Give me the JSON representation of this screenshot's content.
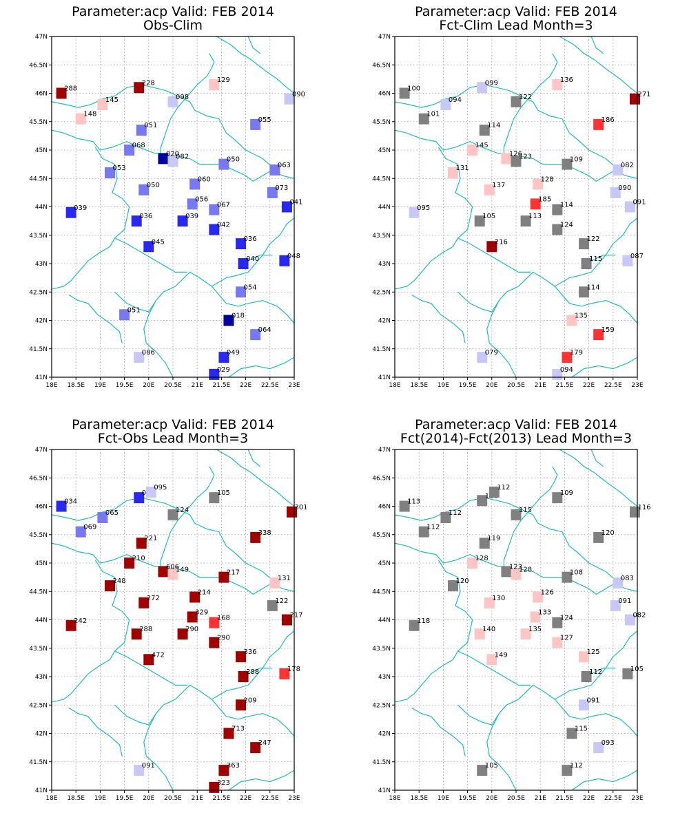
{
  "palette": {
    "dark_red": "#a00000",
    "red": "#ff3333",
    "light_red": "#ffc4c4",
    "gray": "#808080",
    "light_blue": "#c8c8f8",
    "mid_blue": "#7878f0",
    "blue": "#2828f0",
    "dark_blue": "#0000a0",
    "boundary": "#1fbcbc"
  },
  "lat_ticks": [
    "41N",
    "41.5N",
    "42N",
    "42.5N",
    "43N",
    "43.5N",
    "44N",
    "44.5N",
    "45N",
    "45.5N",
    "46N",
    "46.5N",
    "47N"
  ],
  "lon_ticks": [
    "18E",
    "18.5E",
    "19E",
    "19.5E",
    "20E",
    "20.5E",
    "21E",
    "21.5E",
    "22E",
    "22.5E",
    "23E"
  ],
  "maps": [
    {
      "title": [
        "Parameter:acp Valid: FEB 2014",
        "Obs-Clim"
      ],
      "stations": [
        {
          "lon": 18.2,
          "lat": 46.0,
          "label": "288",
          "c": "dark_red"
        },
        {
          "lon": 19.8,
          "lat": 46.1,
          "label": "228",
          "c": "dark_red"
        },
        {
          "lon": 21.35,
          "lat": 46.15,
          "label": "129",
          "c": "light_red"
        },
        {
          "lon": 19.05,
          "lat": 45.8,
          "label": "145",
          "c": "light_red"
        },
        {
          "lon": 20.5,
          "lat": 45.85,
          "label": "098",
          "c": "light_blue"
        },
        {
          "lon": 22.9,
          "lat": 45.9,
          "label": "090",
          "c": "light_blue"
        },
        {
          "lon": 18.6,
          "lat": 45.55,
          "label": "148",
          "c": "light_red"
        },
        {
          "lon": 19.85,
          "lat": 45.35,
          "label": "051",
          "c": "mid_blue"
        },
        {
          "lon": 22.2,
          "lat": 45.45,
          "label": "055",
          "c": "mid_blue"
        },
        {
          "lon": 19.6,
          "lat": 45.0,
          "label": "068",
          "c": "mid_blue"
        },
        {
          "lon": 20.3,
          "lat": 44.85,
          "label": "020",
          "c": "dark_blue"
        },
        {
          "lon": 20.5,
          "lat": 44.8,
          "label": "082",
          "c": "light_blue"
        },
        {
          "lon": 21.55,
          "lat": 44.75,
          "label": "050",
          "c": "mid_blue"
        },
        {
          "lon": 22.6,
          "lat": 44.65,
          "label": "063",
          "c": "mid_blue"
        },
        {
          "lon": 19.2,
          "lat": 44.6,
          "label": "053",
          "c": "mid_blue"
        },
        {
          "lon": 20.95,
          "lat": 44.4,
          "label": "060",
          "c": "mid_blue"
        },
        {
          "lon": 19.9,
          "lat": 44.3,
          "label": "050",
          "c": "mid_blue"
        },
        {
          "lon": 22.55,
          "lat": 44.25,
          "label": "073",
          "c": "mid_blue"
        },
        {
          "lon": 20.9,
          "lat": 44.05,
          "label": "056",
          "c": "mid_blue"
        },
        {
          "lon": 21.35,
          "lat": 43.95,
          "label": "067",
          "c": "mid_blue"
        },
        {
          "lon": 22.85,
          "lat": 44.0,
          "label": "041",
          "c": "blue"
        },
        {
          "lon": 18.4,
          "lat": 43.9,
          "label": "039",
          "c": "blue"
        },
        {
          "lon": 19.75,
          "lat": 43.75,
          "label": "036",
          "c": "blue"
        },
        {
          "lon": 20.7,
          "lat": 43.75,
          "label": "039",
          "c": "blue"
        },
        {
          "lon": 21.35,
          "lat": 43.6,
          "label": "042",
          "c": "blue"
        },
        {
          "lon": 21.9,
          "lat": 43.35,
          "label": "036",
          "c": "blue"
        },
        {
          "lon": 20.0,
          "lat": 43.3,
          "label": "045",
          "c": "blue"
        },
        {
          "lon": 21.95,
          "lat": 43.0,
          "label": "040",
          "c": "blue"
        },
        {
          "lon": 22.8,
          "lat": 43.05,
          "label": "048",
          "c": "blue"
        },
        {
          "lon": 21.9,
          "lat": 42.5,
          "label": "054",
          "c": "mid_blue"
        },
        {
          "lon": 19.5,
          "lat": 42.1,
          "label": "051",
          "c": "mid_blue"
        },
        {
          "lon": 21.65,
          "lat": 42.0,
          "label": "018",
          "c": "dark_blue"
        },
        {
          "lon": 22.2,
          "lat": 41.75,
          "label": "064",
          "c": "mid_blue"
        },
        {
          "lon": 19.8,
          "lat": 41.35,
          "label": "086",
          "c": "light_blue"
        },
        {
          "lon": 21.55,
          "lat": 41.35,
          "label": "049",
          "c": "blue"
        },
        {
          "lon": 21.35,
          "lat": 41.05,
          "label": "029",
          "c": "blue"
        }
      ]
    },
    {
      "title": [
        "Parameter:acp Valid: FEB 2014",
        "Fct-Clim Lead Month=3"
      ],
      "stations": [
        {
          "lon": 18.2,
          "lat": 46.0,
          "label": "100",
          "c": "gray"
        },
        {
          "lon": 19.8,
          "lat": 46.1,
          "label": "099",
          "c": "light_blue"
        },
        {
          "lon": 21.35,
          "lat": 46.15,
          "label": "136",
          "c": "light_red"
        },
        {
          "lon": 22.95,
          "lat": 45.9,
          "label": "271",
          "c": "dark_red"
        },
        {
          "lon": 19.05,
          "lat": 45.8,
          "label": "094",
          "c": "light_blue"
        },
        {
          "lon": 20.5,
          "lat": 45.85,
          "label": "122",
          "c": "gray"
        },
        {
          "lon": 18.6,
          "lat": 45.55,
          "label": "101",
          "c": "gray"
        },
        {
          "lon": 22.2,
          "lat": 45.45,
          "label": "186",
          "c": "red"
        },
        {
          "lon": 19.85,
          "lat": 45.35,
          "label": "114",
          "c": "gray"
        },
        {
          "lon": 19.6,
          "lat": 45.0,
          "label": "145",
          "c": "light_red"
        },
        {
          "lon": 20.3,
          "lat": 44.85,
          "label": "126",
          "c": "light_red"
        },
        {
          "lon": 20.5,
          "lat": 44.8,
          "label": "123",
          "c": "gray"
        },
        {
          "lon": 21.55,
          "lat": 44.75,
          "label": "109",
          "c": "gray"
        },
        {
          "lon": 22.6,
          "lat": 44.65,
          "label": "082",
          "c": "light_blue"
        },
        {
          "lon": 19.2,
          "lat": 44.6,
          "label": "131",
          "c": "light_red"
        },
        {
          "lon": 20.95,
          "lat": 44.4,
          "label": "128",
          "c": "light_red"
        },
        {
          "lon": 19.95,
          "lat": 44.3,
          "label": "137",
          "c": "light_red"
        },
        {
          "lon": 22.55,
          "lat": 44.25,
          "label": "090",
          "c": "light_blue"
        },
        {
          "lon": 20.9,
          "lat": 44.05,
          "label": "185",
          "c": "red"
        },
        {
          "lon": 21.35,
          "lat": 43.95,
          "label": "114",
          "c": "gray"
        },
        {
          "lon": 22.85,
          "lat": 44.0,
          "label": "091",
          "c": "light_blue"
        },
        {
          "lon": 18.4,
          "lat": 43.9,
          "label": "095",
          "c": "light_blue"
        },
        {
          "lon": 19.75,
          "lat": 43.75,
          "label": "105",
          "c": "gray"
        },
        {
          "lon": 20.7,
          "lat": 43.75,
          "label": "113",
          "c": "gray"
        },
        {
          "lon": 21.35,
          "lat": 43.6,
          "label": "124",
          "c": "gray"
        },
        {
          "lon": 21.9,
          "lat": 43.35,
          "label": "122",
          "c": "gray"
        },
        {
          "lon": 20.0,
          "lat": 43.3,
          "label": "216",
          "c": "dark_red"
        },
        {
          "lon": 21.95,
          "lat": 43.0,
          "label": "115",
          "c": "gray"
        },
        {
          "lon": 22.8,
          "lat": 43.05,
          "label": "087",
          "c": "light_blue"
        },
        {
          "lon": 21.9,
          "lat": 42.5,
          "label": "114",
          "c": "gray"
        },
        {
          "lon": 21.65,
          "lat": 42.0,
          "label": "135",
          "c": "light_red"
        },
        {
          "lon": 22.2,
          "lat": 41.75,
          "label": "159",
          "c": "red"
        },
        {
          "lon": 19.8,
          "lat": 41.35,
          "label": "079",
          "c": "light_blue"
        },
        {
          "lon": 21.55,
          "lat": 41.35,
          "label": "179",
          "c": "red"
        },
        {
          "lon": 21.35,
          "lat": 41.05,
          "label": "094",
          "c": "light_blue"
        }
      ]
    },
    {
      "title": [
        "Parameter:acp Valid: FEB 2014",
        "Fct-Obs Lead Month=3"
      ],
      "stations": [
        {
          "lon": 18.2,
          "lat": 46.0,
          "label": "034",
          "c": "blue"
        },
        {
          "lon": 19.8,
          "lat": 46.15,
          "label": "043",
          "c": "blue"
        },
        {
          "lon": 20.05,
          "lat": 46.25,
          "label": "095",
          "c": "light_blue"
        },
        {
          "lon": 21.35,
          "lat": 46.15,
          "label": "105",
          "c": "gray"
        },
        {
          "lon": 22.95,
          "lat": 45.9,
          "label": "301",
          "c": "dark_red"
        },
        {
          "lon": 19.05,
          "lat": 45.8,
          "label": "065",
          "c": "mid_blue"
        },
        {
          "lon": 20.5,
          "lat": 45.85,
          "label": "124",
          "c": "gray"
        },
        {
          "lon": 18.6,
          "lat": 45.55,
          "label": "069",
          "c": "mid_blue"
        },
        {
          "lon": 22.2,
          "lat": 45.45,
          "label": "338",
          "c": "dark_red"
        },
        {
          "lon": 19.85,
          "lat": 45.35,
          "label": "221",
          "c": "dark_red"
        },
        {
          "lon": 19.6,
          "lat": 45.0,
          "label": "210",
          "c": "dark_red"
        },
        {
          "lon": 20.3,
          "lat": 44.85,
          "label": "606",
          "c": "dark_red"
        },
        {
          "lon": 20.5,
          "lat": 44.8,
          "label": "149",
          "c": "light_red"
        },
        {
          "lon": 21.55,
          "lat": 44.75,
          "label": "217",
          "c": "dark_red"
        },
        {
          "lon": 22.6,
          "lat": 44.65,
          "label": "131",
          "c": "light_red"
        },
        {
          "lon": 19.2,
          "lat": 44.6,
          "label": "248",
          "c": "dark_red"
        },
        {
          "lon": 20.95,
          "lat": 44.4,
          "label": "214",
          "c": "dark_red"
        },
        {
          "lon": 19.9,
          "lat": 44.3,
          "label": "272",
          "c": "dark_red"
        },
        {
          "lon": 22.55,
          "lat": 44.25,
          "label": "122",
          "c": "gray"
        },
        {
          "lon": 20.9,
          "lat": 44.05,
          "label": "329",
          "c": "dark_red"
        },
        {
          "lon": 21.35,
          "lat": 43.95,
          "label": "168",
          "c": "red"
        },
        {
          "lon": 22.85,
          "lat": 44.0,
          "label": "217",
          "c": "dark_red"
        },
        {
          "lon": 18.4,
          "lat": 43.9,
          "label": "242",
          "c": "dark_red"
        },
        {
          "lon": 19.75,
          "lat": 43.75,
          "label": "288",
          "c": "dark_red"
        },
        {
          "lon": 20.7,
          "lat": 43.75,
          "label": "290",
          "c": "dark_red"
        },
        {
          "lon": 21.35,
          "lat": 43.6,
          "label": "290",
          "c": "dark_red"
        },
        {
          "lon": 21.9,
          "lat": 43.35,
          "label": "336",
          "c": "dark_red"
        },
        {
          "lon": 20.0,
          "lat": 43.3,
          "label": "472",
          "c": "dark_red"
        },
        {
          "lon": 21.95,
          "lat": 43.0,
          "label": "288",
          "c": "dark_red"
        },
        {
          "lon": 22.8,
          "lat": 43.05,
          "label": "178",
          "c": "red"
        },
        {
          "lon": 21.9,
          "lat": 42.5,
          "label": "209",
          "c": "dark_red"
        },
        {
          "lon": 21.65,
          "lat": 42.0,
          "label": "713",
          "c": "dark_red"
        },
        {
          "lon": 22.2,
          "lat": 41.75,
          "label": "247",
          "c": "dark_red"
        },
        {
          "lon": 19.8,
          "lat": 41.35,
          "label": "091",
          "c": "light_blue"
        },
        {
          "lon": 21.55,
          "lat": 41.35,
          "label": "363",
          "c": "dark_red"
        },
        {
          "lon": 21.35,
          "lat": 41.05,
          "label": "323",
          "c": "dark_red"
        }
      ]
    },
    {
      "title": [
        "Parameter:acp Valid: FEB 2014",
        "Fct(2014)-Fct(2013) Lead Month=3"
      ],
      "stations": [
        {
          "lon": 18.2,
          "lat": 46.0,
          "label": "113",
          "c": "gray"
        },
        {
          "lon": 19.8,
          "lat": 46.1,
          "label": "116",
          "c": "gray"
        },
        {
          "lon": 20.05,
          "lat": 46.25,
          "label": "112",
          "c": "gray"
        },
        {
          "lon": 21.35,
          "lat": 46.15,
          "label": "109",
          "c": "gray"
        },
        {
          "lon": 22.95,
          "lat": 45.9,
          "label": "116",
          "c": "gray"
        },
        {
          "lon": 19.05,
          "lat": 45.8,
          "label": "112",
          "c": "gray"
        },
        {
          "lon": 20.5,
          "lat": 45.85,
          "label": "115",
          "c": "gray"
        },
        {
          "lon": 18.6,
          "lat": 45.55,
          "label": "112",
          "c": "gray"
        },
        {
          "lon": 22.2,
          "lat": 45.45,
          "label": "120",
          "c": "gray"
        },
        {
          "lon": 19.85,
          "lat": 45.35,
          "label": "119",
          "c": "gray"
        },
        {
          "lon": 19.6,
          "lat": 45.0,
          "label": "128",
          "c": "light_red"
        },
        {
          "lon": 20.3,
          "lat": 44.85,
          "label": "123",
          "c": "gray"
        },
        {
          "lon": 20.5,
          "lat": 44.8,
          "label": "128",
          "c": "light_red"
        },
        {
          "lon": 21.55,
          "lat": 44.75,
          "label": "108",
          "c": "gray"
        },
        {
          "lon": 22.6,
          "lat": 44.65,
          "label": "083",
          "c": "light_blue"
        },
        {
          "lon": 19.2,
          "lat": 44.6,
          "label": "120",
          "c": "gray"
        },
        {
          "lon": 20.95,
          "lat": 44.4,
          "label": "126",
          "c": "light_red"
        },
        {
          "lon": 19.95,
          "lat": 44.3,
          "label": "130",
          "c": "light_red"
        },
        {
          "lon": 22.55,
          "lat": 44.25,
          "label": "091",
          "c": "light_blue"
        },
        {
          "lon": 20.9,
          "lat": 44.05,
          "label": "133",
          "c": "light_red"
        },
        {
          "lon": 21.35,
          "lat": 43.95,
          "label": "124",
          "c": "gray"
        },
        {
          "lon": 22.85,
          "lat": 44.0,
          "label": "082",
          "c": "light_blue"
        },
        {
          "lon": 18.4,
          "lat": 43.9,
          "label": "118",
          "c": "gray"
        },
        {
          "lon": 19.75,
          "lat": 43.75,
          "label": "140",
          "c": "light_red"
        },
        {
          "lon": 20.7,
          "lat": 43.75,
          "label": "135",
          "c": "light_red"
        },
        {
          "lon": 21.35,
          "lat": 43.6,
          "label": "127",
          "c": "light_red"
        },
        {
          "lon": 21.9,
          "lat": 43.35,
          "label": "125",
          "c": "light_red"
        },
        {
          "lon": 20.0,
          "lat": 43.3,
          "label": "149",
          "c": "light_red"
        },
        {
          "lon": 21.95,
          "lat": 43.0,
          "label": "112",
          "c": "gray"
        },
        {
          "lon": 22.8,
          "lat": 43.05,
          "label": "105",
          "c": "gray"
        },
        {
          "lon": 21.9,
          "lat": 42.5,
          "label": "091",
          "c": "light_blue"
        },
        {
          "lon": 21.65,
          "lat": 42.0,
          "label": "115",
          "c": "gray"
        },
        {
          "lon": 22.2,
          "lat": 41.75,
          "label": "093",
          "c": "light_blue"
        },
        {
          "lon": 19.8,
          "lat": 41.35,
          "label": "105",
          "c": "gray"
        },
        {
          "lon": 21.55,
          "lat": 41.35,
          "label": "112",
          "c": "gray"
        }
      ]
    }
  ]
}
